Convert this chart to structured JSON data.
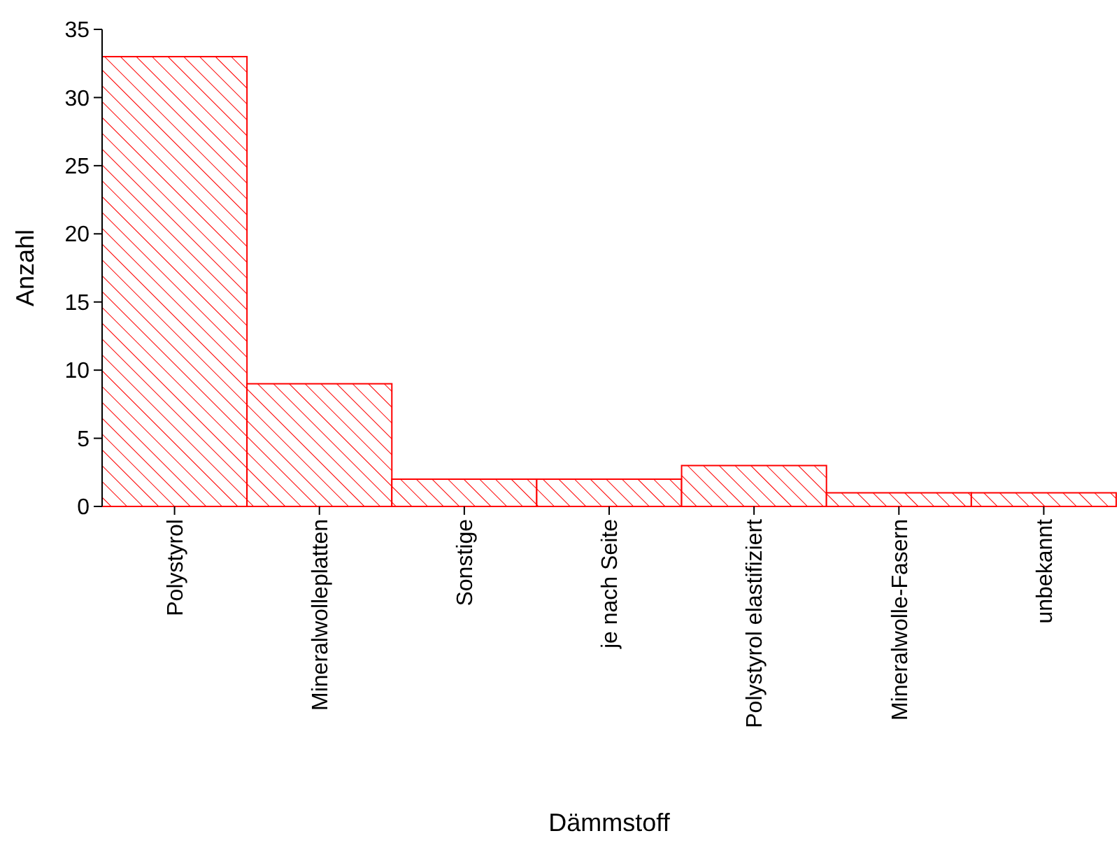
{
  "chart_data": {
    "type": "bar",
    "xlabel": "Dämmstoff",
    "ylabel": "Anzahl",
    "categories": [
      "Polystyrol",
      "Mineralwolleplatten",
      "Sonstige",
      "je nach Seite",
      "Polystyrol elastifiziert",
      "Mineralwolle-Fasern",
      "unbekannt"
    ],
    "values": [
      33,
      9,
      2,
      2,
      3,
      1,
      1
    ],
    "color": "#ff0000",
    "ylim": [
      0,
      35
    ],
    "yticks": [
      0,
      5,
      10,
      15,
      20,
      25,
      30,
      35
    ],
    "grid": false
  }
}
